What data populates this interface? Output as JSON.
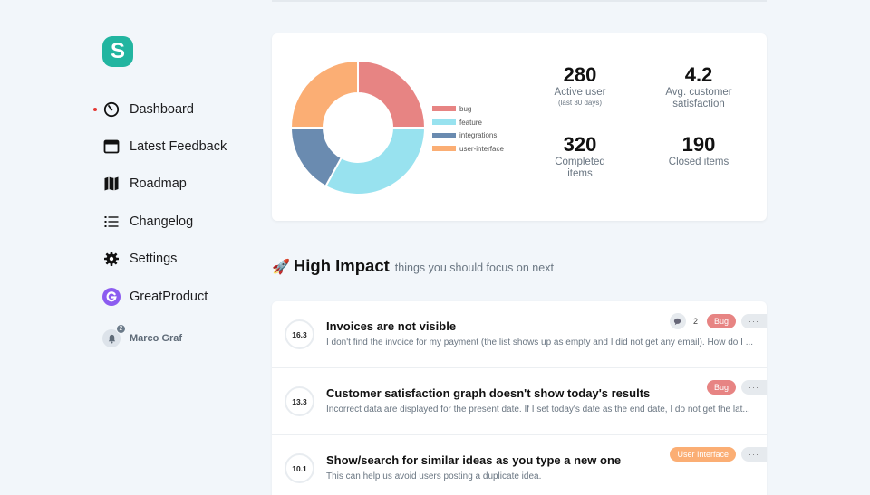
{
  "app": {
    "logo_letter": "S"
  },
  "sidebar": {
    "items": [
      {
        "label": "Dashboard",
        "active": true
      },
      {
        "label": "Latest Feedback"
      },
      {
        "label": "Roadmap"
      },
      {
        "label": "Changelog"
      },
      {
        "label": "Settings"
      },
      {
        "label": "GreatProduct"
      }
    ],
    "user": {
      "name": "Marco Graf",
      "notifications": "2"
    }
  },
  "stats": {
    "active_users": {
      "value": "280",
      "label": "Active user",
      "sub": "(last 30 days)"
    },
    "satisfaction": {
      "value": "4.2",
      "label": "Avg. customer satisfaction"
    },
    "completed": {
      "value": "320",
      "label": "Completed items"
    },
    "closed": {
      "value": "190",
      "label": "Closed items"
    }
  },
  "chart_data": {
    "type": "pie",
    "categories": [
      "bug",
      "feature",
      "integrations",
      "user-interface"
    ],
    "values": [
      25,
      33,
      17,
      25
    ],
    "colors": [
      "#e78483",
      "#98e2ef",
      "#6a8bb0",
      "#fbae74"
    ],
    "legend_position": "right"
  },
  "high_impact": {
    "emoji": "🚀",
    "title": "High Impact",
    "subtitle": "things you should focus on next",
    "items": [
      {
        "score": "16.3",
        "title": "Invoices are not visible",
        "desc": "I don't find the invoice for my payment (the list shows up as empty and I did not get any email). How do I ...",
        "comments": "2",
        "tag": "Bug",
        "more": "···"
      },
      {
        "score": "13.3",
        "title": "Customer satisfaction graph doesn't show today's results",
        "desc": "Incorrect data are displayed for the present date. If I set today's date as the end date, I do not get the lat...",
        "tag": "Bug",
        "more": "···"
      },
      {
        "score": "10.1",
        "title": "Show/search for similar ideas as you type a new one",
        "desc": "This can help us avoid users posting a duplicate idea.",
        "tag": "User Interface",
        "more": "···"
      }
    ]
  }
}
